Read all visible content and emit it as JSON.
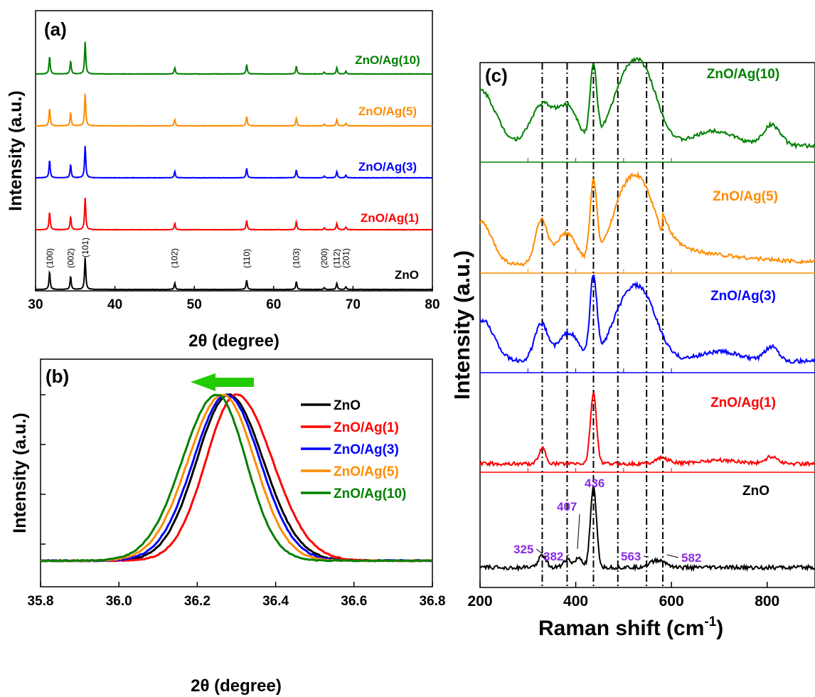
{
  "chart_data": [
    {
      "type": "line",
      "panel_label": "(a)",
      "xlabel": "2θ (degree)",
      "ylabel": "Intensity (a.u.)",
      "xlim": [
        30,
        80
      ],
      "xticks": [
        30,
        40,
        50,
        60,
        70,
        80
      ],
      "peaks": [
        {
          "pos": 31.77,
          "h": 0.45
        },
        {
          "pos": 34.42,
          "h": 0.33
        },
        {
          "pos": 36.25,
          "h": 0.82
        },
        {
          "pos": 47.54,
          "h": 0.16
        },
        {
          "pos": 56.6,
          "h": 0.24
        },
        {
          "pos": 62.86,
          "h": 0.2
        },
        {
          "pos": 66.38,
          "h": 0.05
        },
        {
          "pos": 67.96,
          "h": 0.16
        },
        {
          "pos": 69.1,
          "h": 0.07
        }
      ],
      "reflections": [
        {
          "label": "(100)",
          "pos": 31.77
        },
        {
          "label": "(002)",
          "pos": 34.42
        },
        {
          "label": "(101)",
          "pos": 36.25
        },
        {
          "label": "(102)",
          "pos": 47.54
        },
        {
          "label": "(110)",
          "pos": 56.6
        },
        {
          "label": "(103)",
          "pos": 62.86
        },
        {
          "label": "(200)",
          "pos": 66.38
        },
        {
          "label": "(112)",
          "pos": 67.96
        },
        {
          "label": "(201)",
          "pos": 69.1
        }
      ],
      "series": [
        {
          "name": "ZnO",
          "color": "#000000"
        },
        {
          "name": "ZnO/Ag(1)",
          "color": "#ff0000"
        },
        {
          "name": "ZnO/Ag(3)",
          "color": "#0000ff"
        },
        {
          "name": "ZnO/Ag(5)",
          "color": "#ff8c00"
        },
        {
          "name": "ZnO/Ag(10)",
          "color": "#008000"
        }
      ]
    },
    {
      "type": "line",
      "panel_label": "(b)",
      "xlabel": "2θ (degree)",
      "ylabel": "Intensity (a.u.)",
      "xlim": [
        35.8,
        36.8
      ],
      "xticks": [
        "35.8",
        "36.0",
        "36.2",
        "36.4",
        "36.6",
        "36.8"
      ],
      "legend_position": "top-right",
      "arrow_color": "#22cc00",
      "series": [
        {
          "name": "ZnO",
          "color": "#000000",
          "center": 36.28,
          "width_left": 0.115,
          "width_right": 0.125
        },
        {
          "name": "ZnO/Ag(1)",
          "color": "#ff0000",
          "center": 36.3,
          "width_left": 0.11,
          "width_right": 0.13
        },
        {
          "name": "ZnO/Ag(3)",
          "color": "#0000ff",
          "center": 36.275,
          "width_left": 0.12,
          "width_right": 0.12
        },
        {
          "name": "ZnO/Ag(5)",
          "color": "#ff8c00",
          "center": 36.265,
          "width_left": 0.125,
          "width_right": 0.115
        },
        {
          "name": "ZnO/Ag(10)",
          "color": "#008000",
          "center": 36.25,
          "width_left": 0.125,
          "width_right": 0.105
        }
      ]
    },
    {
      "type": "line",
      "panel_label": "(c)",
      "xlabel": "Raman shift (cm",
      "xlabel_sup": "-1",
      "xlabel_close": ")",
      "ylabel": "Intensity (a.u.)",
      "xlim": [
        200,
        900
      ],
      "xticks": [
        200,
        400,
        600,
        800
      ],
      "reference_lines": [
        330,
        382,
        437,
        488,
        548,
        582
      ],
      "peak_annotations": [
        {
          "label": "325",
          "x": 325
        },
        {
          "label": "382",
          "x": 382
        },
        {
          "label": "407",
          "x": 407
        },
        {
          "label": "436",
          "x": 436
        },
        {
          "label": "563",
          "x": 563
        },
        {
          "label": "582",
          "x": 582
        }
      ],
      "annotation_color": "#8a2be2",
      "series": [
        {
          "name": "ZnO/Ag(10)",
          "color": "#008000"
        },
        {
          "name": "ZnO/Ag(5)",
          "color": "#ff8c00"
        },
        {
          "name": "ZnO/Ag(3)",
          "color": "#0000ff"
        },
        {
          "name": "ZnO/Ag(1)",
          "color": "#ff0000"
        },
        {
          "name": "ZnO",
          "color": "#000000"
        }
      ]
    }
  ]
}
